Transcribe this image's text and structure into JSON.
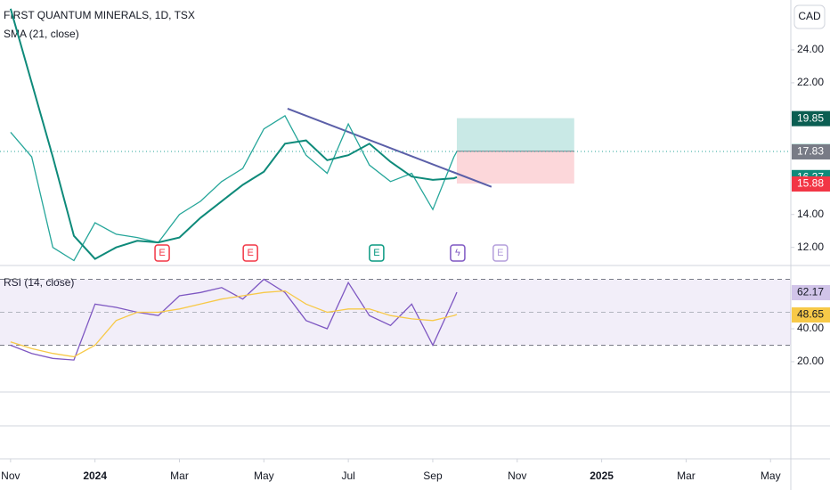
{
  "chart_data": [
    {
      "type": "line",
      "title": "FIRST QUANTUM MINERALS, 1D, TSX",
      "currency": "CAD",
      "x": [
        0,
        0.5,
        1,
        1.5,
        2,
        2.5,
        3,
        3.5,
        4,
        4.5,
        5,
        5.5,
        6,
        6.5,
        7,
        7.5,
        8,
        8.5,
        9,
        9.5,
        10,
        10.5,
        10.57
      ],
      "series": [
        {
          "color": "#26a69a",
          "values": [
            19,
            17.5,
            12,
            11.2,
            13.5,
            12.8,
            12.6,
            12.3,
            14,
            14.8,
            16,
            16.8,
            19.2,
            20,
            17.6,
            16.5,
            19.5,
            17,
            16,
            16.5,
            14.3,
            17.5,
            17.83
          ]
        },
        {
          "name": "SMA (21, close)",
          "color": "#0e8a7a",
          "values": [
            26.5,
            22,
            17.5,
            12.7,
            11.3,
            12,
            12.4,
            12.3,
            12.6,
            13.8,
            14.8,
            15.8,
            16.6,
            18.3,
            18.5,
            17.3,
            17.6,
            18.3,
            17.2,
            16.3,
            16.1,
            16.2,
            16.27
          ]
        }
      ],
      "trendline": {
        "x": [
          6.56,
          11.39
        ],
        "values": [
          20.43,
          15.68
        ],
        "color": "#5b5fa8"
      },
      "position": {
        "x": [
          10.57,
          13.35
        ],
        "target": 19.85,
        "entry": 17.84,
        "stop": 15.88
      },
      "events": [
        {
          "x": 3.59,
          "label": "E",
          "color": "#f23645"
        },
        {
          "x": 5.68,
          "label": "E",
          "color": "#f23645"
        },
        {
          "x": 8.67,
          "label": "E",
          "color": "#089981"
        },
        {
          "x": 10.59,
          "label": "ϟ",
          "color": "#7e57c2"
        },
        {
          "x": 11.6,
          "label": "E",
          "color": "#b39ddb"
        }
      ],
      "xlim": [
        -0.25,
        18.48
      ],
      "xticks": [
        {
          "value": 0,
          "label": "Nov"
        },
        {
          "value": 2,
          "label": "2024"
        },
        {
          "value": 4,
          "label": "Mar"
        },
        {
          "value": 6,
          "label": "May"
        },
        {
          "value": 8,
          "label": "Jul"
        },
        {
          "value": 10,
          "label": "Sep"
        },
        {
          "value": 12,
          "label": "Nov"
        },
        {
          "value": 14,
          "label": "2025"
        },
        {
          "value": 16,
          "label": "Mar"
        },
        {
          "value": 18,
          "label": "May"
        }
      ],
      "ylim": [
        10.9,
        27.03
      ],
      "yticks": [
        {
          "value": 12,
          "label": "12.00"
        },
        {
          "value": 14,
          "label": "14.00"
        },
        {
          "value": 22,
          "label": "22.00"
        },
        {
          "value": 24,
          "label": "24.00"
        }
      ],
      "grid": false
    },
    {
      "type": "line",
      "x": [
        0,
        0.5,
        1,
        1.5,
        2,
        2.5,
        3,
        3.5,
        4,
        4.5,
        5,
        5.5,
        6,
        6.5,
        7,
        7.5,
        8,
        8.5,
        9,
        9.5,
        10,
        10.5,
        10.57
      ],
      "series": [
        {
          "name": "RSI (14, close)",
          "color": "#7e57c2",
          "values": [
            30,
            25,
            22,
            21,
            55,
            53,
            50,
            48,
            60,
            62,
            65,
            58,
            70,
            62,
            45,
            40,
            68,
            48,
            42,
            55,
            30,
            58,
            62.17
          ]
        },
        {
          "color": "#f7c948",
          "values": [
            32,
            28,
            25,
            23,
            30,
            45,
            50,
            50,
            52,
            55,
            58,
            60,
            62,
            63,
            55,
            50,
            52,
            52,
            48,
            46,
            45,
            48,
            48.65
          ]
        }
      ],
      "bands": [
        70,
        30
      ],
      "xlim": [
        -0.25,
        18.48
      ],
      "ylim": [
        1.6,
        78.4
      ],
      "yticks": [
        {
          "value": 20,
          "label": "20.00"
        },
        {
          "value": 40,
          "label": "40.00"
        }
      ],
      "grid": false
    }
  ]
}
